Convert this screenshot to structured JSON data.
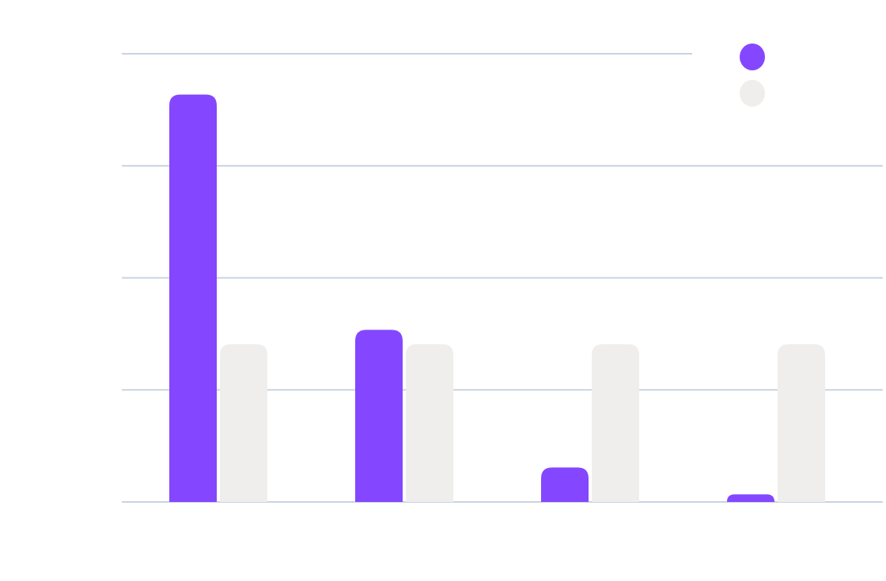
{
  "chart_data": {
    "type": "bar",
    "title": "",
    "xlabel": "",
    "ylabel": "",
    "categories": [
      "",
      "",
      "",
      ""
    ],
    "ylim": [
      0,
      100
    ],
    "grid": true,
    "legend_position": "top-right",
    "series": [
      {
        "color": "#8447ff",
        "values": [
          90.9,
          38.4,
          7.7,
          1.7
        ]
      },
      {
        "color": "#f0eeed",
        "values": [
          35.2,
          35.2,
          35.2,
          35.2
        ]
      }
    ]
  },
  "colors": {
    "grid": "#c9d3e0",
    "background": "#ffffff"
  }
}
